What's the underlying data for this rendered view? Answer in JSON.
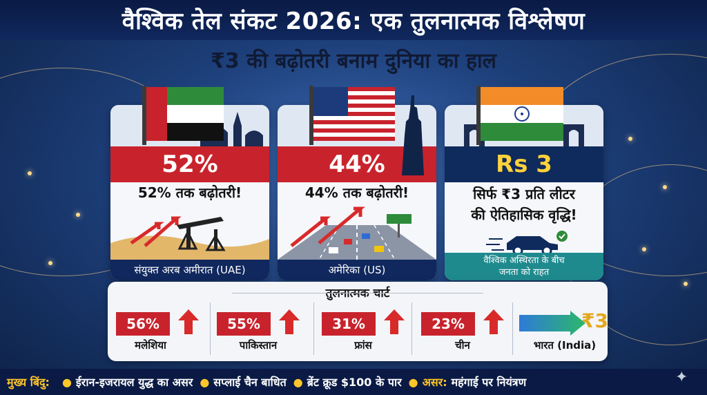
{
  "title": "वैश्विक तेल संकट 2026: एक तुलनात्मक विश्लेषण",
  "subtitle": "₹3 की बढ़ोतरी बनाम दुनिया का हाल",
  "cards": [
    {
      "percent": "52%",
      "text": "52% तक बढ़ोतरी!",
      "footer": "संयुक्त अरब अमीरात (UAE)"
    },
    {
      "percent": "44%",
      "text": "44% तक बढ़ोतरी!",
      "footer": "अमेरिका (US)"
    },
    {
      "percent": "Rs 3",
      "text_line1": "सिर्फ ₹3 प्रति लीटर",
      "text_line2": "की ऐतिहासिक वृद्धि!",
      "footer_line1": "वैश्विक अस्थिरता के बीच",
      "footer_line2": "जनता को राहत"
    }
  ],
  "comparison": {
    "title": "तुलनात्मक चार्ट",
    "items": [
      {
        "value": "56%",
        "country": "मलेशिया"
      },
      {
        "value": "55%",
        "country": "पाकिस्तान"
      },
      {
        "value": "31%",
        "country": "फ्रांस"
      },
      {
        "value": "23%",
        "country": "चीन"
      }
    ],
    "india_value": "₹3",
    "india_label": "भारत (India)"
  },
  "bottom": {
    "label": "मुख्य बिंदु:",
    "points": [
      "ईरान-इजरायल युद्ध का असर",
      "सप्लाई चैन बाधित",
      "ब्रेंट क्रूड $100 के पार"
    ],
    "effect_label": "असर:",
    "effect_text": "महंगाई पर नियंत्रण"
  },
  "colors": {
    "red": "#c8232c",
    "navy": "#0f2a5c",
    "gold": "#ffc629",
    "teal": "#1f8a8e",
    "green": "#2e8b3a"
  }
}
